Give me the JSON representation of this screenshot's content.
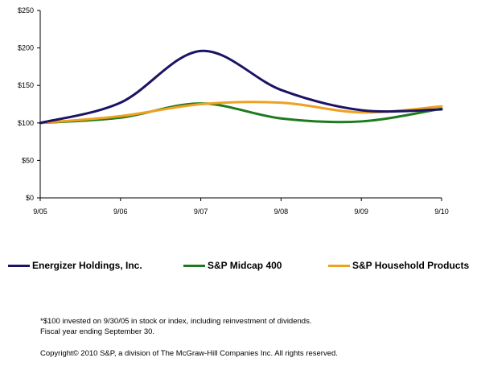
{
  "chart_data": {
    "type": "line",
    "categories": [
      "9/05",
      "9/06",
      "9/07",
      "9/08",
      "9/09",
      "9/10"
    ],
    "yticks": [
      "$0",
      "$50",
      "$100",
      "$150",
      "$200",
      "$250"
    ],
    "ylim": [
      0,
      250
    ],
    "grid": false,
    "series": [
      {
        "name": "Energizer Holdings, Inc.",
        "color": "#1a1464",
        "values": [
          100,
          127,
          196,
          144,
          117,
          118
        ]
      },
      {
        "name": "S&P Midcap 400",
        "color": "#1e7a1e",
        "values": [
          100,
          107,
          126,
          106,
          102,
          119
        ]
      },
      {
        "name": "S&P Household Products",
        "color": "#f0a020",
        "values": [
          100,
          109,
          125,
          127,
          114,
          122
        ]
      }
    ],
    "legend_position": "bottom"
  },
  "footnotes": {
    "line1": "*$100 invested on 9/30/05 in stock or index, including reinvestment of dividends.",
    "line2": "Fiscal year ending September 30.",
    "copyright": "Copyright© 2010 S&P, a division of The McGraw-Hill Companies Inc. All rights reserved."
  }
}
